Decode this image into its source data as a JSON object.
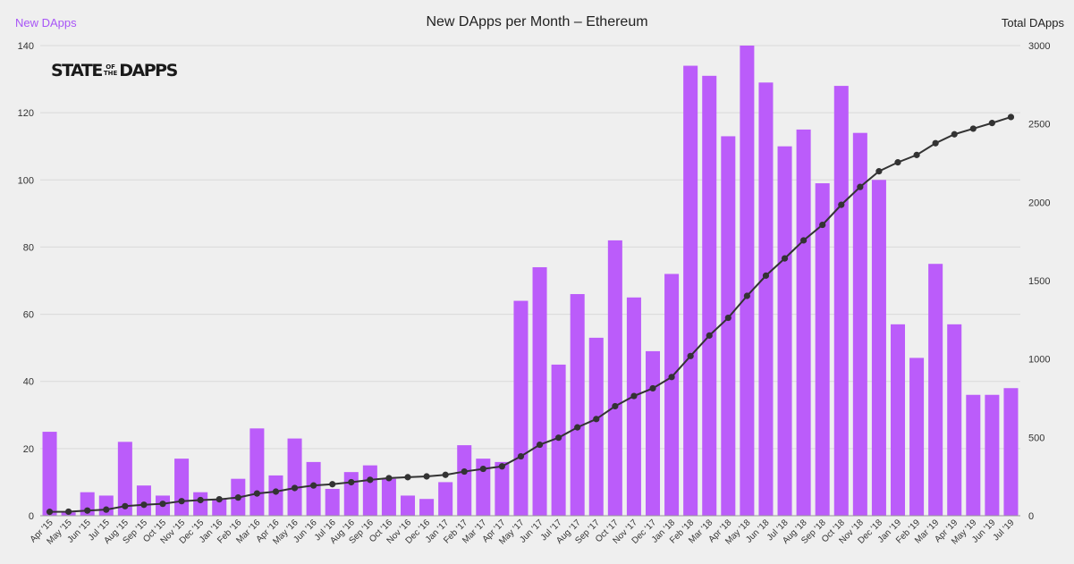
{
  "header": {
    "left_axis_label": "New DApps",
    "title": "New DApps per Month – Ethereum",
    "right_axis_label": "Total DApps"
  },
  "logo": {
    "word1": "STATE",
    "mid1": "OF",
    "mid2": "THE",
    "word2": "DAPPS"
  },
  "colors": {
    "bar": "#bb5cfa",
    "line": "#333333",
    "grid": "#d9d9d9",
    "background": "#efefef"
  },
  "chart_data": {
    "type": "bar",
    "categories": [
      "Apr '15",
      "May '15",
      "Jun '15",
      "Jul '15",
      "Aug '15",
      "Sep '15",
      "Oct '15",
      "Nov '15",
      "Dec '15",
      "Jan '16",
      "Feb '16",
      "Mar '16",
      "Apr '16",
      "May '16",
      "Jun '16",
      "Jul '16",
      "Aug '16",
      "Sep '16",
      "Oct '16",
      "Nov '16",
      "Dec '16",
      "Jan '17",
      "Feb '17",
      "Mar '17",
      "Apr '17",
      "May '17",
      "Jun '17",
      "Jul '17",
      "Aug '17",
      "Sep '17",
      "Oct '17",
      "Nov '17",
      "Dec '17",
      "Jan '18",
      "Feb '18",
      "Mar '18",
      "Apr '18",
      "May '18",
      "Jun '18",
      "Jul '18",
      "Aug '18",
      "Sep '18",
      "Oct '18",
      "Nov '18",
      "Dec '18",
      "Jan '19",
      "Feb '19",
      "Mar '19",
      "Apr '19",
      "May '19",
      "Jun '19",
      "Jul '19"
    ],
    "series": [
      {
        "name": "New DApps",
        "type": "bar",
        "axis": "left",
        "values": [
          25,
          1,
          7,
          6,
          22,
          9,
          6,
          17,
          7,
          5,
          11,
          26,
          12,
          23,
          16,
          8,
          13,
          15,
          11,
          6,
          5,
          10,
          21,
          17,
          16,
          64,
          74,
          45,
          66,
          53,
          82,
          65,
          49,
          72,
          134,
          131,
          113,
          140,
          129,
          110,
          115,
          99,
          128,
          114,
          100,
          57,
          47,
          75,
          57,
          36,
          36,
          38
        ]
      },
      {
        "name": "Total DApps",
        "type": "line",
        "axis": "right",
        "values": [
          25,
          26,
          33,
          39,
          61,
          70,
          76,
          93,
          100,
          105,
          116,
          142,
          154,
          177,
          193,
          201,
          214,
          229,
          240,
          246,
          251,
          261,
          282,
          299,
          315,
          379,
          453,
          498,
          564,
          617,
          699,
          764,
          813,
          885,
          1019,
          1150,
          1263,
          1403,
          1532,
          1642,
          1757,
          1856,
          1984,
          2098,
          2198,
          2255,
          2302,
          2377,
          2434,
          2470,
          2506,
          2544
        ]
      }
    ],
    "ylim_left": [
      0,
      140
    ],
    "yticks_left": [
      0,
      20,
      40,
      60,
      80,
      100,
      120,
      140
    ],
    "ylim_right": [
      0,
      3000
    ],
    "yticks_right": [
      0,
      500,
      1000,
      1500,
      2000,
      2500,
      3000
    ],
    "grid": true
  }
}
